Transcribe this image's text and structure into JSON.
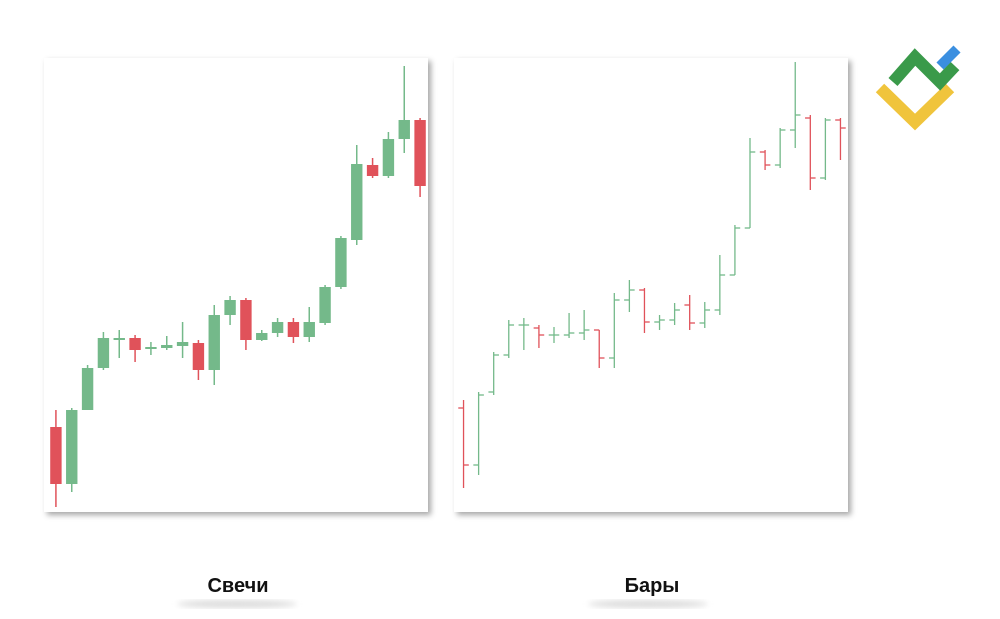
{
  "chart_data": [
    {
      "type": "candlestick",
      "title": "Свечи",
      "up_color": "#74b98a",
      "down_color": "#e0525a",
      "ylim": [
        8,
        460
      ],
      "open": [
        93,
        36,
        110,
        152,
        180,
        182,
        171,
        172,
        174,
        177,
        150,
        205,
        220,
        180,
        187,
        198,
        183,
        197,
        233,
        280,
        355,
        344,
        381,
        400
      ],
      "high": [
        110,
        112,
        155,
        188,
        190,
        185,
        178,
        184,
        198,
        180,
        215,
        224,
        222,
        190,
        202,
        202,
        213,
        235,
        284,
        375,
        362,
        388,
        454,
        402
      ],
      "low": [
        13,
        28,
        110,
        150,
        162,
        158,
        165,
        170,
        162,
        140,
        135,
        195,
        170,
        179,
        183,
        177,
        178,
        195,
        231,
        275,
        342,
        342,
        367,
        323
      ],
      "close": [
        36,
        110,
        152,
        182,
        182,
        170,
        173,
        175,
        178,
        150,
        205,
        220,
        180,
        187,
        198,
        183,
        198,
        233,
        282,
        356,
        344,
        381,
        400,
        334
      ]
    },
    {
      "type": "ohlc",
      "title": "Бары",
      "up_color": "#74b98a",
      "down_color": "#e0525a",
      "ylim": [
        8,
        460
      ],
      "open": [
        112,
        55,
        128,
        165,
        195,
        192,
        185,
        185,
        187,
        190,
        162,
        220,
        230,
        198,
        200,
        215,
        197,
        210,
        245,
        292,
        368,
        355,
        390,
        402,
        342,
        400
      ],
      "high": [
        120,
        128,
        168,
        200,
        202,
        195,
        193,
        207,
        210,
        190,
        227,
        240,
        232,
        205,
        217,
        225,
        218,
        265,
        295,
        382,
        370,
        392,
        458,
        405,
        402,
        402
      ],
      "low": [
        32,
        45,
        125,
        162,
        170,
        172,
        177,
        182,
        180,
        152,
        152,
        208,
        187,
        190,
        195,
        190,
        192,
        205,
        245,
        292,
        350,
        352,
        372,
        330,
        340,
        360
      ],
      "close": [
        55,
        125,
        165,
        195,
        195,
        185,
        185,
        187,
        190,
        162,
        220,
        230,
        198,
        200,
        210,
        197,
        210,
        245,
        292,
        368,
        355,
        390,
        405,
        342,
        400,
        392
      ]
    }
  ]
}
